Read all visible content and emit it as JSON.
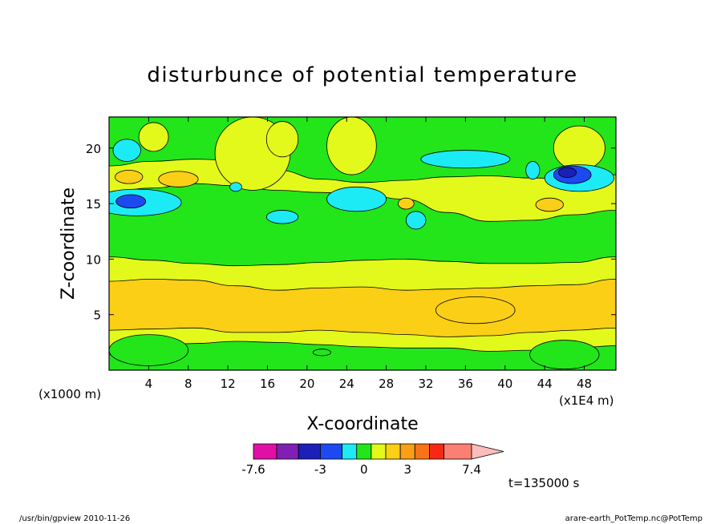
{
  "chart_data": {
    "type": "heatmap",
    "title": "disturbunce of potential temperature",
    "xlabel": "X-coordinate",
    "ylabel": "Z-coordinate",
    "x_ticks": [
      "4",
      "8",
      "12",
      "16",
      "20",
      "24",
      "28",
      "32",
      "36",
      "40",
      "44",
      "48"
    ],
    "x_tick_values": [
      4,
      8,
      12,
      16,
      20,
      24,
      28,
      32,
      36,
      40,
      44,
      48
    ],
    "y_ticks": [
      "5",
      "10",
      "15",
      "20"
    ],
    "y_tick_values": [
      5,
      10,
      15,
      20
    ],
    "xlim": [
      0,
      51.2
    ],
    "ylim": [
      0,
      22.8
    ],
    "x_scale_note": "(x1E4 m)",
    "y_scale_note": "(x1000 m)",
    "time_label": "t=135000 s",
    "colorbar": {
      "tick_labels": [
        "-7.6",
        "-3",
        "0",
        "3",
        "7.4"
      ],
      "tick_values": [
        -7.6,
        -3,
        0,
        3,
        7.4
      ],
      "levels": [
        -7.6,
        -6,
        -4.5,
        -3,
        -1.5,
        -0.5,
        0.5,
        1.5,
        2.5,
        3.5,
        4.5,
        5.5,
        7.4
      ],
      "colors": [
        "#e10fa6",
        "#7f1fb4",
        "#1c1fb8",
        "#1c49f0",
        "#1cebf6",
        "#22e61a",
        "#e3f91b",
        "#fbcf16",
        "#fba014",
        "#f87416",
        "#f72915",
        "#fb7f73"
      ],
      "over_color": "#fbbcbc"
    },
    "background_value_color": "#22e61a",
    "bands": [
      {
        "name": "upper-yellow",
        "color": "#e3f91b",
        "x": [
          0,
          51.2
        ],
        "z_top": [
          18.4,
          18.8,
          19.0,
          18.9,
          18.0,
          17.2,
          16.9,
          17.1,
          17.4,
          17.5,
          17.3,
          17.2,
          17.6
        ],
        "z_bottom": [
          16.0,
          16.4,
          16.8,
          16.6,
          16.2,
          16.0,
          15.8,
          15.4,
          14.2,
          13.4,
          13.5,
          14.0,
          14.4
        ]
      },
      {
        "name": "middle-yellow",
        "color": "#e3f91b",
        "x": [
          0,
          51.2
        ],
        "z_top": [
          10.2,
          9.9,
          9.6,
          9.4,
          9.5,
          9.7,
          9.9,
          10.0,
          9.8,
          9.6,
          9.6,
          9.7,
          10.2
        ],
        "z_bottom": [
          1.4,
          2.2,
          2.4,
          2.6,
          2.5,
          2.3,
          2.1,
          2.0,
          2.0,
          1.7,
          1.8,
          2.0,
          2.2
        ]
      },
      {
        "name": "middle-orange",
        "color": "#fbcf16",
        "x": [
          0,
          51.2
        ],
        "z_top": [
          8.0,
          8.2,
          8.1,
          7.6,
          7.2,
          7.4,
          7.5,
          7.2,
          7.3,
          7.4,
          7.6,
          7.7,
          8.2
        ],
        "z_bottom": [
          3.6,
          3.7,
          3.8,
          3.4,
          3.4,
          3.6,
          3.4,
          3.2,
          3.0,
          3.1,
          3.4,
          3.6,
          3.8
        ]
      }
    ],
    "features": [
      {
        "color": "#22e61a",
        "cx": 4.0,
        "cz": 1.8,
        "rx": 4.0,
        "rz": 1.4
      },
      {
        "color": "#e3f91b",
        "cx": 14.5,
        "cz": 19.5,
        "rx": 3.8,
        "rz": 3.3
      },
      {
        "color": "#e3f91b",
        "cx": 24.5,
        "cz": 20.2,
        "rx": 2.5,
        "rz": 2.6
      },
      {
        "color": "#e3f91b",
        "cx": 17.5,
        "cz": 20.8,
        "rx": 1.6,
        "rz": 1.6
      },
      {
        "color": "#e3f91b",
        "cx": 4.5,
        "cz": 21.0,
        "rx": 1.5,
        "rz": 1.3
      },
      {
        "color": "#e3f91b",
        "cx": 47.5,
        "cz": 20.0,
        "rx": 2.6,
        "rz": 2.0
      },
      {
        "color": "#fbcf16",
        "cx": 7.0,
        "cz": 17.2,
        "rx": 2.0,
        "rz": 0.7
      },
      {
        "color": "#fbcf16",
        "cx": 2.0,
        "cz": 17.4,
        "rx": 1.4,
        "rz": 0.6
      },
      {
        "color": "#fbcf16",
        "cx": 44.5,
        "cz": 14.9,
        "rx": 1.4,
        "rz": 0.6
      },
      {
        "color": "#fbcf16",
        "cx": 30.0,
        "cz": 15.0,
        "rx": 0.8,
        "rz": 0.5
      },
      {
        "color": "#fbcf16",
        "cx": 37.0,
        "cz": 5.4,
        "rx": 4.0,
        "rz": 1.2
      },
      {
        "color": "#1cebf6",
        "cx": 2.8,
        "cz": 15.1,
        "rx": 4.5,
        "rz": 1.2
      },
      {
        "color": "#1cebf6",
        "cx": 25.0,
        "cz": 15.4,
        "rx": 3.0,
        "rz": 1.1
      },
      {
        "color": "#1cebf6",
        "cx": 17.5,
        "cz": 13.8,
        "rx": 1.6,
        "rz": 0.6
      },
      {
        "color": "#1cebf6",
        "cx": 36.0,
        "cz": 19.0,
        "rx": 4.5,
        "rz": 0.8
      },
      {
        "color": "#1cebf6",
        "cx": 47.5,
        "cz": 17.3,
        "rx": 3.5,
        "rz": 1.2
      },
      {
        "color": "#1cebf6",
        "cx": 31.0,
        "cz": 13.5,
        "rx": 1.0,
        "rz": 0.8
      },
      {
        "color": "#1cebf6",
        "cx": 1.8,
        "cz": 19.8,
        "rx": 1.4,
        "rz": 1.0
      },
      {
        "color": "#1cebf6",
        "cx": 12.8,
        "cz": 16.5,
        "rx": 0.6,
        "rz": 0.4
      },
      {
        "color": "#1cebf6",
        "cx": 42.8,
        "cz": 18.0,
        "rx": 0.7,
        "rz": 0.8
      },
      {
        "color": "#1c49f0",
        "cx": 46.8,
        "cz": 17.6,
        "rx": 1.9,
        "rz": 0.8
      },
      {
        "color": "#1c49f0",
        "cx": 2.2,
        "cz": 15.2,
        "rx": 1.5,
        "rz": 0.6
      },
      {
        "color": "#1c1fb8",
        "cx": 46.3,
        "cz": 17.8,
        "rx": 0.9,
        "rz": 0.45
      },
      {
        "color": "#22e61a",
        "cx": 21.5,
        "cz": 1.6,
        "rx": 0.9,
        "rz": 0.3
      },
      {
        "color": "#22e61a",
        "cx": 46.0,
        "cz": 1.4,
        "rx": 3.5,
        "rz": 1.3
      }
    ],
    "footer_left": "/usr/bin/gpview  2010-11-26",
    "footer_right": "arare-earth_PotTemp.nc@PotTemp"
  }
}
